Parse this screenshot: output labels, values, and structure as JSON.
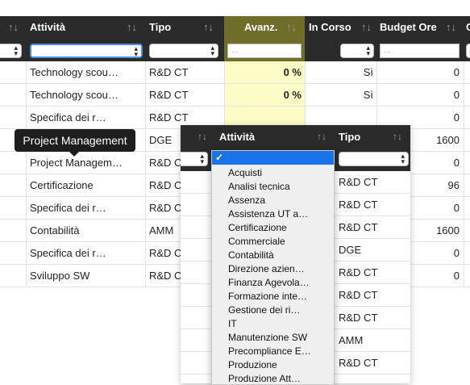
{
  "header": {
    "columns": [
      {
        "label": "Attività",
        "sort_icon": "sort-arrows-icon"
      },
      {
        "label": "Tipo",
        "sort_icon": "sort-arrows-icon"
      },
      {
        "label": "Avanz.",
        "sort_icon": "sort-arrows-icon"
      },
      {
        "label": "In Corso",
        "sort_icon": "sort-arrows-icon"
      },
      {
        "label": "Budget Ore",
        "sort_icon": "sort-arrows-icon"
      },
      {
        "label": "C",
        "sort_icon": "sort-arrows-icon"
      }
    ],
    "avanz_filter_placeholder": "...",
    "budget_filter_placeholder": "...",
    "colors": {
      "header_bg": "#2b2b2b",
      "avanz_header_bg": "#6e6e2a",
      "avanz_cell_bg": "#fbfbc6"
    }
  },
  "rows": [
    {
      "attivita": "Technology scou…",
      "tipo": "R&D CT",
      "avanz": "0 %",
      "in_corso": "Sì",
      "budget": "0"
    },
    {
      "attivita": "Technology scou…",
      "tipo": "R&D CT",
      "avanz": "0 %",
      "in_corso": "Sì",
      "budget": "0"
    },
    {
      "attivita": "Specifica dei r…",
      "tipo": "R&D CT",
      "avanz": "",
      "in_corso": "",
      "budget": "0"
    },
    {
      "attivita": "",
      "tipo": "DGE",
      "avanz": "",
      "in_corso": "",
      "budget": "1600"
    },
    {
      "attivita": "Project Managem…",
      "tipo": "R&D C",
      "avanz": "",
      "in_corso": "",
      "budget": "0"
    },
    {
      "attivita": "Certificazione",
      "tipo": "R&D C",
      "avanz": "",
      "in_corso": "",
      "budget": "96"
    },
    {
      "attivita": "Specifica dei r…",
      "tipo": "R&D C",
      "avanz": "",
      "in_corso": "",
      "budget": "0"
    },
    {
      "attivita": "Contabilità",
      "tipo": "AMM",
      "avanz": "",
      "in_corso": "",
      "budget": "1600"
    },
    {
      "attivita": "Specifica dei r…",
      "tipo": "R&D C",
      "avanz": "",
      "in_corso": "",
      "budget": "0"
    },
    {
      "attivita": "Sviluppo SW",
      "tipo": "R&D C",
      "avanz": "",
      "in_corso": "",
      "budget": "0"
    }
  ],
  "tooltip": {
    "text": "Project Management"
  },
  "overlay": {
    "header": {
      "attivita": "Attività",
      "tipo": "Tipo"
    },
    "rows_tipo": [
      "R&D CT",
      "R&D CT",
      "R&D CT",
      "DGE",
      "R&D CT",
      "R&D CT",
      "R&D CT",
      "AMM",
      "R&D CT"
    ]
  },
  "dropdown": {
    "selected": "✓",
    "options": [
      "Acquisti",
      "Analisi tecnica",
      "Assenza",
      "Assistenza UT a…",
      "Certificazione",
      "Commerciale",
      "Contabilità",
      "Direzione azien…",
      "Finanza Agevola…",
      "Formazione inte…",
      "Gestione dei ri…",
      "IT",
      "Manutenzione SW",
      "Precompliance E…",
      "Produzione",
      "Produzione Att…"
    ]
  }
}
